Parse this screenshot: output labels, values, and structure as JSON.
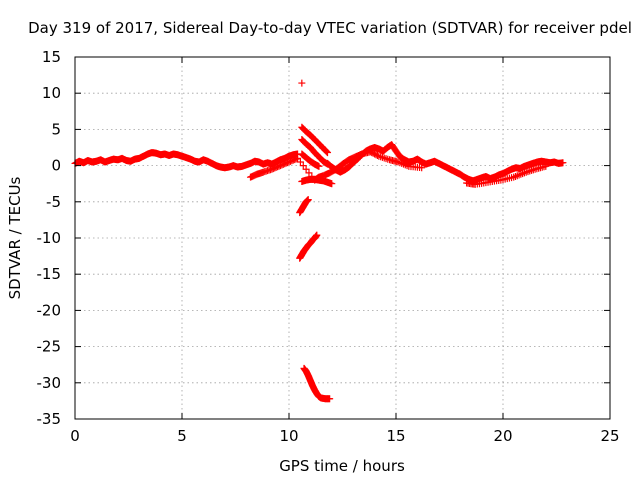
{
  "chart_data": {
    "type": "scatter",
    "title": "Day 319 of 2017, Sidereal Day-to-day VTEC variation (SDTVAR) for receiver pdel",
    "xlabel": "GPS time / hours",
    "ylabel": "SDTVAR / TECUs",
    "xlim": [
      0,
      25
    ],
    "ylim": [
      -35,
      15
    ],
    "x_ticks": [
      0,
      5,
      10,
      15,
      20,
      25
    ],
    "y_ticks": [
      15,
      10,
      5,
      0,
      -5,
      -10,
      -15,
      -20,
      -25,
      -30,
      -35
    ],
    "grid": true,
    "marker": "+",
    "color": "#ff0000",
    "series": [
      {
        "name": "main-trace",
        "points": [
          [
            0.0,
            0.3
          ],
          [
            0.2,
            0.6
          ],
          [
            0.4,
            0.4
          ],
          [
            0.6,
            0.7
          ],
          [
            0.8,
            0.5
          ],
          [
            1.0,
            0.6
          ],
          [
            1.2,
            0.8
          ],
          [
            1.4,
            0.5
          ],
          [
            1.6,
            0.7
          ],
          [
            1.8,
            0.9
          ],
          [
            2.0,
            0.8
          ],
          [
            2.2,
            1.0
          ],
          [
            2.4,
            0.7
          ],
          [
            2.6,
            0.6
          ],
          [
            2.8,
            0.9
          ],
          [
            3.0,
            1.0
          ],
          [
            3.2,
            1.3
          ],
          [
            3.4,
            1.6
          ],
          [
            3.6,
            1.8
          ],
          [
            3.8,
            1.7
          ],
          [
            4.0,
            1.5
          ],
          [
            4.2,
            1.6
          ],
          [
            4.4,
            1.4
          ],
          [
            4.6,
            1.6
          ],
          [
            4.8,
            1.5
          ],
          [
            5.0,
            1.3
          ],
          [
            5.2,
            1.1
          ],
          [
            5.4,
            0.9
          ],
          [
            5.6,
            0.6
          ],
          [
            5.8,
            0.5
          ],
          [
            6.0,
            0.8
          ],
          [
            6.2,
            0.6
          ],
          [
            6.4,
            0.3
          ],
          [
            6.6,
            0.0
          ],
          [
            6.8,
            -0.2
          ],
          [
            7.0,
            -0.3
          ],
          [
            7.2,
            -0.2
          ],
          [
            7.4,
            0.0
          ],
          [
            7.6,
            -0.2
          ],
          [
            7.8,
            -0.1
          ],
          [
            8.0,
            0.1
          ],
          [
            8.2,
            0.3
          ],
          [
            8.4,
            0.6
          ],
          [
            8.6,
            0.5
          ],
          [
            8.8,
            0.2
          ],
          [
            9.0,
            0.4
          ],
          [
            9.2,
            0.2
          ],
          [
            9.4,
            0.5
          ],
          [
            9.6,
            0.8
          ],
          [
            9.8,
            1.0
          ],
          [
            10.0,
            1.3
          ],
          [
            10.2,
            1.5
          ],
          [
            10.4,
            1.6
          ],
          [
            11.8,
            0.3
          ],
          [
            12.0,
            -0.2
          ],
          [
            12.2,
            -0.6
          ],
          [
            12.4,
            -0.9
          ],
          [
            12.6,
            -0.6
          ],
          [
            12.8,
            -0.2
          ],
          [
            13.0,
            0.4
          ],
          [
            13.2,
            0.9
          ],
          [
            13.4,
            1.5
          ],
          [
            13.6,
            2.0
          ],
          [
            13.8,
            2.3
          ],
          [
            14.0,
            2.5
          ],
          [
            14.2,
            2.3
          ],
          [
            14.4,
            2.0
          ],
          [
            14.6,
            2.5
          ],
          [
            14.8,
            2.9
          ],
          [
            15.0,
            2.0
          ],
          [
            15.2,
            1.2
          ],
          [
            15.4,
            0.8
          ],
          [
            15.6,
            0.5
          ],
          [
            15.8,
            0.6
          ],
          [
            16.0,
            0.9
          ],
          [
            16.2,
            0.5
          ],
          [
            16.4,
            0.2
          ],
          [
            16.6,
            0.4
          ],
          [
            16.8,
            0.6
          ],
          [
            17.0,
            0.3
          ],
          [
            17.2,
            0.0
          ],
          [
            17.4,
            -0.3
          ],
          [
            17.6,
            -0.6
          ],
          [
            17.8,
            -0.9
          ],
          [
            18.0,
            -1.2
          ],
          [
            18.2,
            -1.6
          ],
          [
            18.4,
            -1.9
          ],
          [
            18.6,
            -2.1
          ],
          [
            18.8,
            -1.9
          ],
          [
            19.0,
            -1.7
          ],
          [
            19.2,
            -1.5
          ],
          [
            19.4,
            -1.8
          ],
          [
            19.6,
            -1.6
          ],
          [
            19.8,
            -1.3
          ],
          [
            20.0,
            -1.1
          ],
          [
            20.2,
            -0.8
          ],
          [
            20.4,
            -0.5
          ],
          [
            20.6,
            -0.3
          ],
          [
            20.8,
            -0.4
          ],
          [
            21.0,
            -0.1
          ],
          [
            21.2,
            0.1
          ],
          [
            21.4,
            0.3
          ],
          [
            21.6,
            0.5
          ],
          [
            21.8,
            0.6
          ],
          [
            22.0,
            0.5
          ],
          [
            22.2,
            0.4
          ],
          [
            22.4,
            0.5
          ],
          [
            22.6,
            0.3
          ],
          [
            22.8,
            0.4
          ]
        ]
      },
      {
        "name": "secondary-trace",
        "points": [
          [
            8.2,
            -1.6
          ],
          [
            8.5,
            -1.2
          ],
          [
            8.8,
            -0.9
          ],
          [
            9.2,
            -0.5
          ],
          [
            9.6,
            0.0
          ],
          [
            10.0,
            0.5
          ],
          [
            10.4,
            1.0
          ],
          [
            11.2,
            -2.0
          ],
          [
            11.4,
            -1.6
          ],
          [
            11.6,
            -1.4
          ],
          [
            11.9,
            -1.0
          ],
          [
            12.2,
            -0.5
          ],
          [
            12.5,
            0.2
          ],
          [
            12.8,
            0.8
          ],
          [
            13.1,
            1.2
          ],
          [
            13.4,
            1.6
          ],
          [
            13.8,
            1.9
          ],
          [
            14.2,
            1.3
          ],
          [
            14.7,
            0.8
          ],
          [
            15.1,
            0.5
          ],
          [
            15.6,
            -0.1
          ],
          [
            16.2,
            -0.3
          ],
          [
            18.3,
            -2.4
          ],
          [
            18.7,
            -2.6
          ],
          [
            19.3,
            -2.3
          ],
          [
            19.9,
            -2.0
          ],
          [
            20.5,
            -1.6
          ],
          [
            21.0,
            -1.0
          ],
          [
            21.5,
            -0.5
          ],
          [
            22.0,
            -0.1
          ]
        ]
      },
      {
        "name": "disturbance-descending-upper",
        "points": [
          [
            10.6,
            5.3
          ],
          [
            10.8,
            4.7
          ],
          [
            11.0,
            4.2
          ],
          [
            11.2,
            3.6
          ],
          [
            11.4,
            3.0
          ],
          [
            11.6,
            2.4
          ],
          [
            11.8,
            1.8
          ]
        ]
      },
      {
        "name": "disturbance-descending-mid",
        "points": [
          [
            10.6,
            3.6
          ],
          [
            10.8,
            3.0
          ],
          [
            11.0,
            2.5
          ],
          [
            11.2,
            1.8
          ],
          [
            11.4,
            1.2
          ],
          [
            11.6,
            0.6
          ],
          [
            11.8,
            0.2
          ]
        ]
      },
      {
        "name": "disturbance-descending-lower",
        "points": [
          [
            10.6,
            1.6
          ],
          [
            10.8,
            1.1
          ],
          [
            11.0,
            0.6
          ],
          [
            11.2,
            0.2
          ],
          [
            11.4,
            -0.1
          ]
        ]
      },
      {
        "name": "disturbance-arc-minus2",
        "points": [
          [
            10.6,
            -2.2
          ],
          [
            10.8,
            -2.0
          ],
          [
            11.0,
            -1.9
          ],
          [
            11.2,
            -1.9
          ],
          [
            11.4,
            -2.0
          ],
          [
            11.6,
            -2.1
          ],
          [
            11.8,
            -2.3
          ],
          [
            12.0,
            -2.5
          ]
        ]
      },
      {
        "name": "disturbance-minus5",
        "points": [
          [
            10.5,
            -6.5
          ],
          [
            10.6,
            -6.0
          ],
          [
            10.7,
            -5.5
          ],
          [
            10.8,
            -5.0
          ],
          [
            10.9,
            -4.7
          ]
        ]
      },
      {
        "name": "disturbance-minus12",
        "points": [
          [
            10.5,
            -12.8
          ],
          [
            10.6,
            -12.3
          ],
          [
            10.7,
            -11.8
          ],
          [
            10.8,
            -11.4
          ],
          [
            10.9,
            -11.0
          ],
          [
            11.0,
            -10.7
          ],
          [
            11.1,
            -10.3
          ],
          [
            11.2,
            -10.0
          ],
          [
            11.3,
            -9.6
          ]
        ]
      },
      {
        "name": "disturbance-minus30",
        "points": [
          [
            10.7,
            -28.0
          ],
          [
            10.8,
            -28.4
          ],
          [
            10.9,
            -29.0
          ],
          [
            11.0,
            -29.7
          ],
          [
            11.1,
            -30.4
          ],
          [
            11.2,
            -31.0
          ],
          [
            11.3,
            -31.5
          ],
          [
            11.4,
            -31.9
          ],
          [
            11.5,
            -32.1
          ],
          [
            11.7,
            -32.2
          ],
          [
            11.9,
            -32.2
          ]
        ]
      },
      {
        "name": "outlier",
        "points": [
          [
            10.6,
            11.4
          ]
        ]
      }
    ]
  }
}
